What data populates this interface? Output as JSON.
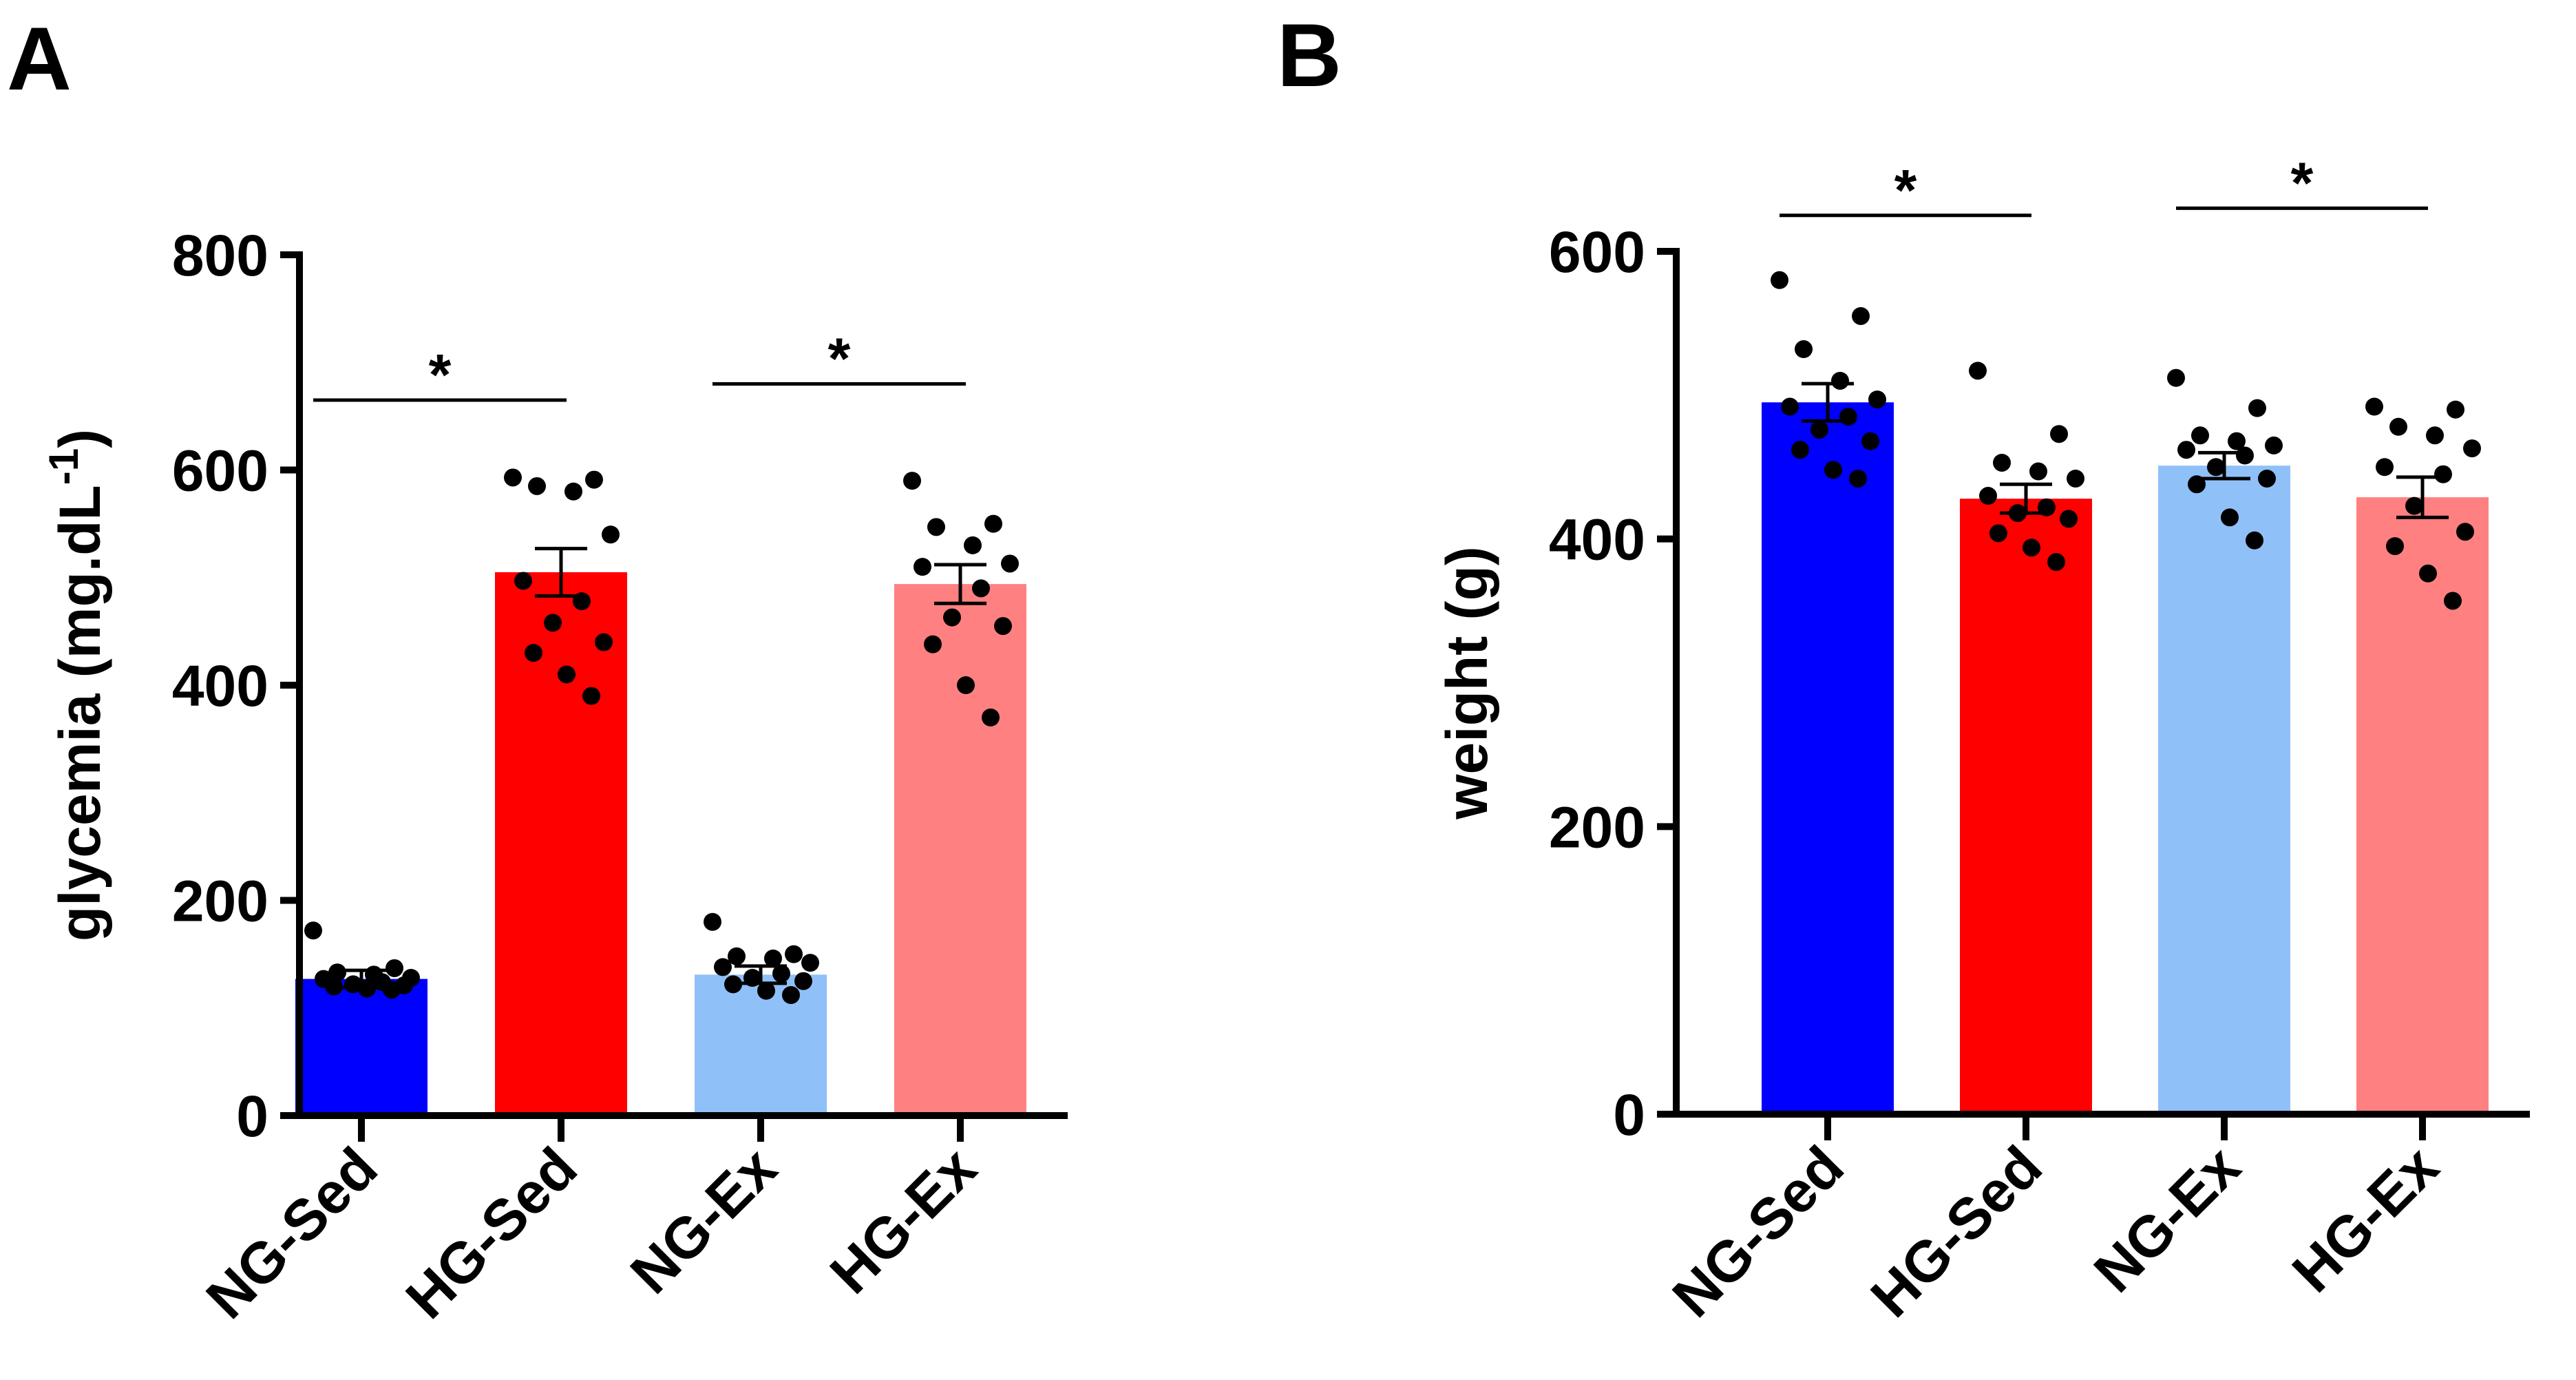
{
  "chart_data": [
    {
      "type": "bar",
      "panel_label": "A",
      "categories": [
        "NG-Sed",
        "HG-Sed",
        "NG-Ex",
        "HG-Ex"
      ],
      "colors": [
        "#0000ff",
        "#ff0000",
        "#90c0f8",
        "#ff8080"
      ],
      "values": [
        127,
        505,
        131,
        494
      ],
      "sem": [
        8,
        22,
        8,
        18
      ],
      "points": [
        [
          172,
          137,
          133,
          131,
          128,
          127,
          124,
          122,
          121,
          120,
          118,
          117
        ],
        [
          593,
          591,
          585,
          580,
          540,
          497,
          478,
          458,
          440,
          430,
          410,
          390
        ],
        [
          180,
          150,
          148,
          146,
          142,
          138,
          132,
          128,
          125,
          122,
          116,
          112
        ],
        [
          590,
          550,
          547,
          530,
          513,
          510,
          490,
          463,
          455,
          438,
          400,
          370
        ]
      ],
      "significance": [
        {
          "from": 0,
          "to": 1,
          "label": "*",
          "y": 665
        },
        {
          "from": 2,
          "to": 3,
          "label": "*",
          "y": 680
        }
      ],
      "title": "",
      "xlabel": "",
      "ylabel": "glycemia (mg.dL",
      "ylabel_superscript": "-1",
      "ylabel_close": ")",
      "ylim": [
        0,
        800
      ],
      "yticks": [
        0,
        200,
        400,
        600,
        800
      ],
      "grid": false,
      "legend": "none"
    },
    {
      "type": "bar",
      "panel_label": "B",
      "categories": [
        "NG-Sed",
        "HG-Sed",
        "NG-Ex",
        "HG-Ex"
      ],
      "colors": [
        "#0000ff",
        "#ff0000",
        "#90c0f8",
        "#ff8080"
      ],
      "values": [
        495,
        428,
        451,
        429
      ],
      "sem": [
        13,
        10,
        9,
        14
      ],
      "points": [
        [
          580,
          555,
          532,
          510,
          497,
          492,
          485,
          476,
          468,
          462,
          448,
          442
        ],
        [
          517,
          473,
          453,
          447,
          442,
          430,
          422,
          418,
          414,
          404,
          394,
          384
        ],
        [
          512,
          491,
          472,
          468,
          465,
          462,
          458,
          450,
          442,
          438,
          415,
          399
        ],
        [
          492,
          490,
          478,
          472,
          463,
          450,
          445,
          423,
          405,
          395,
          376,
          357
        ]
      ],
      "significance": [
        {
          "from": 0,
          "to": 1,
          "label": "*",
          "y": 625
        },
        {
          "from": 2,
          "to": 3,
          "label": "*",
          "y": 630
        }
      ],
      "title": "",
      "xlabel": "",
      "ylabel": "weight (g)",
      "ylabel_superscript": "",
      "ylabel_close": "",
      "ylim": [
        0,
        600
      ],
      "yticks": [
        0,
        200,
        400,
        600
      ],
      "grid": false,
      "legend": "none"
    }
  ]
}
